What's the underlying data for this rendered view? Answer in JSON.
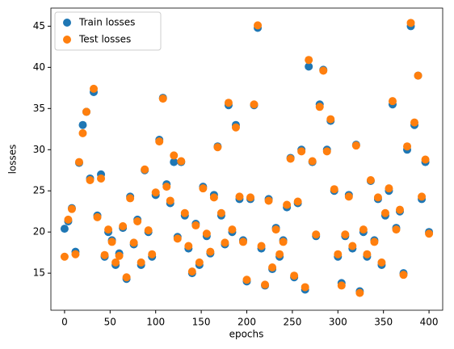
{
  "chart_data": {
    "type": "scatter",
    "xlabel": "epochs",
    "ylabel": "losses",
    "xlim": [
      -15,
      415
    ],
    "ylim": [
      10.5,
      47.2
    ],
    "xticks": [
      0,
      50,
      100,
      150,
      200,
      250,
      300,
      350,
      400
    ],
    "yticks": [
      15,
      20,
      25,
      30,
      35,
      40,
      45
    ],
    "legend": "upper left",
    "x": [
      0,
      4,
      8,
      12,
      16,
      20,
      24,
      28,
      32,
      36,
      40,
      44,
      48,
      52,
      56,
      60,
      64,
      68,
      72,
      76,
      80,
      84,
      88,
      92,
      96,
      100,
      104,
      108,
      112,
      116,
      120,
      124,
      128,
      132,
      136,
      140,
      144,
      148,
      152,
      156,
      160,
      164,
      168,
      172,
      176,
      180,
      184,
      188,
      192,
      196,
      200,
      204,
      208,
      212,
      216,
      220,
      224,
      228,
      232,
      236,
      240,
      244,
      248,
      252,
      256,
      260,
      264,
      268,
      272,
      276,
      280,
      284,
      288,
      292,
      296,
      300,
      304,
      308,
      312,
      316,
      320,
      324,
      328,
      332,
      336,
      340,
      344,
      348,
      352,
      356,
      360,
      364,
      368,
      372,
      376,
      380,
      384,
      388,
      392,
      396,
      400
    ],
    "series": [
      {
        "name": "Train losses",
        "color": "#1f77b4",
        "values": [
          20.4,
          21.3,
          22.9,
          17.6,
          28.4,
          33.0,
          34.6,
          26.5,
          37.0,
          22.0,
          27.0,
          17.0,
          20.0,
          19.0,
          16.0,
          17.4,
          20.5,
          14.3,
          24.3,
          18.5,
          21.5,
          16.0,
          27.5,
          20.0,
          17.0,
          24.5,
          31.2,
          36.3,
          25.8,
          23.5,
          28.5,
          19.4,
          28.5,
          22.0,
          18.0,
          15.0,
          21.0,
          16.0,
          25.5,
          19.5,
          17.4,
          24.5,
          30.4,
          22.0,
          18.5,
          35.4,
          20.0,
          33.0,
          24.0,
          19.0,
          14.0,
          24.0,
          35.4,
          44.8,
          18.0,
          13.5,
          24.0,
          15.5,
          20.5,
          17.0,
          19.0,
          23.0,
          29.0,
          14.5,
          23.5,
          30.0,
          13.0,
          40.1,
          28.5,
          19.5,
          35.5,
          39.7,
          30.0,
          33.5,
          25.0,
          17.0,
          13.8,
          19.5,
          24.5,
          18.0,
          30.6,
          12.8,
          20.0,
          17.0,
          26.2,
          19.0,
          24.0,
          16.0,
          22.0,
          25.0,
          35.5,
          20.5,
          22.5,
          15.0,
          30.0,
          45.0,
          33.0,
          39.0,
          24.0,
          28.5,
          20.0
        ]
      },
      {
        "name": "Test losses",
        "color": "#ff7f0e",
        "values": [
          17.0,
          21.5,
          22.8,
          17.3,
          28.5,
          32.0,
          34.6,
          26.3,
          37.4,
          21.8,
          26.5,
          17.2,
          20.3,
          18.8,
          16.3,
          17.1,
          20.7,
          14.5,
          24.1,
          18.7,
          21.3,
          16.3,
          27.6,
          20.2,
          17.3,
          24.8,
          31.0,
          36.2,
          25.5,
          23.8,
          29.3,
          19.2,
          28.6,
          22.3,
          18.3,
          15.2,
          20.8,
          16.3,
          25.3,
          19.8,
          17.6,
          24.2,
          30.3,
          22.3,
          18.7,
          35.7,
          20.3,
          32.7,
          24.3,
          18.8,
          14.2,
          24.2,
          35.5,
          45.1,
          18.3,
          13.6,
          23.8,
          15.7,
          20.3,
          17.3,
          18.8,
          23.3,
          28.9,
          14.7,
          23.7,
          29.8,
          13.3,
          40.9,
          28.6,
          19.7,
          35.2,
          39.6,
          29.8,
          33.7,
          25.2,
          17.3,
          13.5,
          19.7,
          24.3,
          18.3,
          30.5,
          12.6,
          20.3,
          17.3,
          26.3,
          18.8,
          24.2,
          16.3,
          22.3,
          25.3,
          35.9,
          20.3,
          22.7,
          14.8,
          30.4,
          45.4,
          33.3,
          39.0,
          24.3,
          28.8,
          19.8
        ]
      }
    ]
  }
}
